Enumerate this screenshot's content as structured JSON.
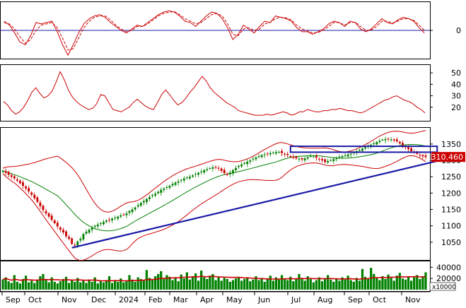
{
  "chart_data": [
    {
      "type": "line",
      "panel": "oscillator",
      "ylim": [
        -1.0,
        1.0
      ],
      "yticks": [
        "0"
      ],
      "zero_line_color": "#1a1aa8",
      "series": [
        {
          "color": "#cc0000",
          "style": "solid",
          "values": [
            0.35,
            0.2,
            -0.1,
            -0.45,
            -0.55,
            -0.2,
            0.3,
            0.25,
            0.3,
            0.35,
            -0.05,
            -0.55,
            -0.95,
            -0.55,
            -0.1,
            0.25,
            0.45,
            0.55,
            0.6,
            0.5,
            0.3,
            0.15,
            0.0,
            -0.1,
            0.05,
            0.2,
            0.15,
            0.3,
            0.45,
            0.6,
            0.7,
            0.75,
            0.7,
            0.55,
            0.35,
            0.3,
            0.15,
            0.35,
            0.55,
            0.7,
            0.65,
            0.45,
            0.1,
            -0.35,
            -0.15,
            0.2,
            0.05,
            -0.1,
            0.15,
            0.35,
            0.3,
            0.55,
            0.5,
            0.45,
            0.35,
            0.1,
            -0.05,
            -0.05,
            -0.15,
            -0.05,
            0.05,
            0.25,
            0.35,
            0.3,
            0.15,
            0.35,
            0.3,
            0.05,
            -0.05,
            0.05,
            0.25,
            0.45,
            0.3,
            0.25,
            0.4,
            0.5,
            0.45,
            0.35,
            0.1,
            -0.1
          ]
        },
        {
          "color": "#cc0000",
          "style": "dashed",
          "values": [
            0.3,
            0.25,
            0.05,
            -0.25,
            -0.5,
            -0.35,
            0.0,
            0.2,
            0.25,
            0.3,
            0.1,
            -0.3,
            -0.75,
            -0.7,
            -0.3,
            0.1,
            0.35,
            0.5,
            0.55,
            0.55,
            0.4,
            0.2,
            0.05,
            -0.05,
            0.0,
            0.15,
            0.15,
            0.25,
            0.4,
            0.55,
            0.65,
            0.7,
            0.72,
            0.6,
            0.45,
            0.35,
            0.25,
            0.3,
            0.45,
            0.6,
            0.65,
            0.55,
            0.25,
            -0.15,
            -0.2,
            0.05,
            0.1,
            0.0,
            0.05,
            0.25,
            0.3,
            0.45,
            0.5,
            0.48,
            0.4,
            0.2,
            0.05,
            -0.02,
            -0.1,
            -0.08,
            0.0,
            0.15,
            0.3,
            0.3,
            0.2,
            0.3,
            0.32,
            0.15,
            0.0,
            0.02,
            0.15,
            0.35,
            0.35,
            0.28,
            0.35,
            0.45,
            0.45,
            0.38,
            0.2,
            0.0
          ]
        }
      ]
    },
    {
      "type": "line",
      "panel": "adx",
      "ylim": [
        10,
        55
      ],
      "yticks": [
        "20",
        "30",
        "40",
        "50"
      ],
      "series": [
        {
          "color": "#cc0000",
          "values": [
            25,
            22,
            17,
            14,
            16,
            20,
            26,
            33,
            37,
            32,
            28,
            30,
            34,
            42,
            51,
            44,
            35,
            29,
            25,
            22,
            20,
            18,
            19,
            23,
            31,
            30,
            24,
            18,
            17,
            16,
            18,
            20,
            24,
            27,
            24,
            21,
            19,
            18,
            24,
            31,
            35,
            31,
            26,
            22,
            24,
            28,
            33,
            37,
            42,
            47,
            43,
            37,
            33,
            30,
            27,
            24,
            22,
            20,
            17,
            16,
            15,
            14,
            13,
            13,
            13,
            14,
            13,
            14,
            15,
            16,
            15,
            13,
            14,
            16,
            16,
            18,
            17,
            16,
            16,
            17,
            17,
            18,
            18,
            19,
            18,
            17,
            17,
            16,
            15,
            16,
            18,
            20,
            22,
            24,
            26,
            27,
            29,
            30,
            28,
            26,
            25,
            23,
            20,
            18,
            15
          ]
        }
      ]
    },
    {
      "type": "candlestick",
      "panel": "price",
      "ylim": [
        1000,
        1395
      ],
      "yticks": [
        "1050",
        "1100",
        "1150",
        "1200",
        "1250",
        "1300",
        "1350"
      ],
      "last_price_label": "1310.460",
      "colors": {
        "up": "#008000",
        "down": "#cc0000",
        "trendline": "#1a1aa8",
        "box": "#1a1aa8",
        "ma": "#008000",
        "band": "#cc0000"
      },
      "close": [
        1268,
        1262,
        1256,
        1250,
        1245,
        1238,
        1230,
        1222,
        1214,
        1205,
        1195,
        1184,
        1173,
        1160,
        1148,
        1138,
        1128,
        1118,
        1108,
        1098,
        1088,
        1080,
        1068,
        1060,
        1045,
        1040,
        1052,
        1060,
        1075,
        1082,
        1088,
        1094,
        1100,
        1104,
        1108,
        1112,
        1116,
        1118,
        1122,
        1125,
        1128,
        1132,
        1134,
        1138,
        1145,
        1150,
        1156,
        1163,
        1170,
        1176,
        1182,
        1188,
        1194,
        1198,
        1204,
        1210,
        1214,
        1218,
        1222,
        1228,
        1232,
        1236,
        1240,
        1245,
        1248,
        1250,
        1254,
        1258,
        1262,
        1266,
        1270,
        1273,
        1276,
        1279,
        1280,
        1275,
        1268,
        1261,
        1256,
        1263,
        1270,
        1277,
        1283,
        1288,
        1292,
        1296,
        1300,
        1305,
        1309,
        1313,
        1316,
        1318,
        1320,
        1322,
        1324,
        1325,
        1326,
        1322,
        1318,
        1316,
        1312,
        1308,
        1306,
        1305,
        1303,
        1306,
        1310,
        1313,
        1312,
        1308,
        1304,
        1300,
        1295,
        1298,
        1301,
        1304,
        1308,
        1311,
        1313,
        1315,
        1318,
        1320,
        1324,
        1328,
        1332,
        1336,
        1340,
        1344,
        1348,
        1352,
        1356,
        1360,
        1363,
        1365,
        1366,
        1364,
        1361,
        1358,
        1352,
        1346,
        1340,
        1334,
        1328,
        1324,
        1320,
        1316,
        1312,
        1310
      ],
      "trendline": {
        "start": [
          24,
          1033
        ],
        "end": [
          151,
          1298
        ]
      },
      "resistance_box": {
        "x_range": [
          100,
          151
        ],
        "y_range": [
          1325,
          1343
        ]
      },
      "x_labels": [
        "Sep",
        "Oct",
        "Nov",
        "Dec",
        "2024",
        "Feb",
        "Mar",
        "Apr",
        "May",
        "Jun",
        "Jul",
        "Aug",
        "Sep",
        "Oct",
        "Nov"
      ]
    },
    {
      "type": "bar",
      "panel": "volume",
      "ylim": [
        0,
        48000
      ],
      "yticks": [
        "20000",
        "40000"
      ],
      "unit_label": "x10000",
      "colors": {
        "bars": "#008000",
        "ma": "#cc0000"
      },
      "values": [
        18000,
        22000,
        15000,
        12000,
        26000,
        14000,
        11000,
        19000,
        25000,
        13000,
        16000,
        12000,
        18000,
        24000,
        28000,
        17000,
        13000,
        22000,
        14000,
        11000,
        15000,
        19000,
        23000,
        12000,
        17000,
        14000,
        21000,
        13000,
        16000,
        12000,
        18000,
        14000,
        22000,
        11000,
        15000,
        13000,
        17000,
        24000,
        12000,
        16000,
        14000,
        20000,
        13000,
        15000,
        26000,
        18000,
        14000,
        22000,
        19000,
        16000,
        35000,
        21000,
        17000,
        24000,
        28000,
        33000,
        19000,
        26000,
        23000,
        17000,
        21000,
        15000,
        27000,
        20000,
        31000,
        18000,
        24000,
        29000,
        16000,
        34000,
        22000,
        19000,
        25000,
        28000,
        17000,
        23000,
        16000,
        21000,
        19000,
        14000,
        17000,
        20000,
        23000,
        16000,
        19000,
        22000,
        15000,
        18000,
        24000,
        17000,
        21000,
        14000,
        19000,
        25000,
        16000,
        22000,
        18000,
        26000,
        20000,
        17000,
        23000,
        15000,
        19000,
        28000,
        21000,
        16000,
        24000,
        19000,
        13000,
        17000,
        22000,
        15000,
        19000,
        26000,
        18000,
        14000,
        20000,
        16000,
        22000,
        18000,
        25000,
        17000,
        14000,
        21000,
        16000,
        37000,
        23000,
        19000,
        39000,
        28000,
        22000,
        17000,
        24000,
        19000,
        27000,
        21000,
        16000,
        25000,
        30000,
        20000,
        18000,
        23000,
        16000,
        22000,
        26000,
        19000,
        24000,
        31000
      ]
    }
  ]
}
